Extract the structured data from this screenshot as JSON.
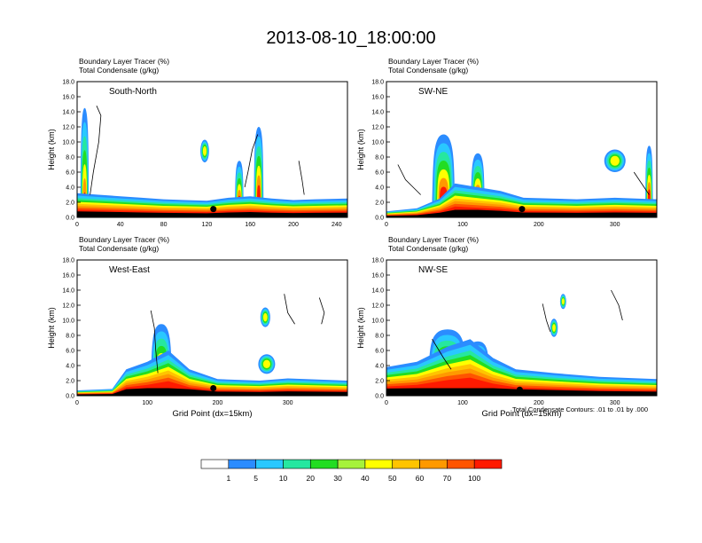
{
  "figure": {
    "title": "2013-08-10_18:00:00",
    "condensate_note": "Total Condensate Contours: .01 to .01 by .000"
  },
  "palette": {
    "label_values": [
      "1",
      "5",
      "10",
      "20",
      "30",
      "40",
      "50",
      "60",
      "70",
      "100"
    ],
    "colors": [
      "#ffffff",
      "#2b8cff",
      "#29c8ff",
      "#26e7a0",
      "#22dd22",
      "#a6f23b",
      "#ffff00",
      "#ffc400",
      "#ff9900",
      "#ff5400",
      "#ff1a00"
    ]
  },
  "chart_data": [
    {
      "type": "heatmap",
      "panel_label": "South-North",
      "title_line1": "Boundary Layer Tracer   (%)",
      "title_line2": "Total Condensate   (g/kg)",
      "xlabel": "",
      "ylabel": "Height (km)",
      "xlim": [
        0,
        250
      ],
      "ylim": [
        0,
        18
      ],
      "xticks": [
        "0",
        "40",
        "80",
        "120",
        "160",
        "200",
        "240"
      ],
      "yticks": [
        "0.0",
        "2.0",
        "4.0",
        "6.0",
        "8.0",
        "10.0",
        "12.0",
        "14.0",
        "16.0",
        "18.0"
      ],
      "grid": false,
      "series": [
        {
          "name": "Boundary Layer Tracer",
          "units": "%",
          "features": [
            {
              "kind": "boundary_layer",
              "profile": [
                [
                  0,
                  3.2
                ],
                [
                  20,
                  3.0
                ],
                [
                  40,
                  2.8
                ],
                [
                  60,
                  2.6
                ],
                [
                  80,
                  2.4
                ],
                [
                  100,
                  2.3
                ],
                [
                  120,
                  2.2
                ],
                [
                  140,
                  2.6
                ],
                [
                  160,
                  2.8
                ],
                [
                  180,
                  2.5
                ],
                [
                  200,
                  2.3
                ],
                [
                  220,
                  2.4
                ],
                [
                  250,
                  2.5
                ]
              ]
            },
            {
              "kind": "plume",
              "x": 7,
              "base": 0,
              "top": 14.5,
              "width": 8
            },
            {
              "kind": "plume",
              "x": 168,
              "base": 2,
              "top": 12.0,
              "width": 9
            },
            {
              "kind": "plume",
              "x": 150,
              "base": 1.5,
              "top": 7.5,
              "width": 8
            },
            {
              "kind": "blob",
              "x": 118,
              "y": 8.8,
              "rx": 4,
              "ry": 1.5
            }
          ]
        },
        {
          "name": "Total Condensate",
          "units": "g/kg",
          "features": [
            {
              "kind": "contour",
              "points": [
                [
                  18,
                  14.8
                ],
                [
                  22,
                  13.5
                ],
                [
                  20,
                  10
                ],
                [
                  15,
                  6
                ],
                [
                  12,
                  3
                ]
              ]
            },
            {
              "kind": "contour",
              "points": [
                [
                  167,
                  11.0
                ],
                [
                  162,
                  9
                ],
                [
                  158,
                  6
                ],
                [
                  155,
                  4
                ]
              ]
            },
            {
              "kind": "contour",
              "points": [
                [
                  205,
                  7.5
                ],
                [
                  208,
                  5
                ],
                [
                  210,
                  3
                ]
              ]
            }
          ]
        }
      ],
      "marker": {
        "x": 126,
        "y": 1.1
      }
    },
    {
      "type": "heatmap",
      "panel_label": "SW-NE",
      "title_line1": "Boundary Layer Tracer   (%)",
      "title_line2": "Total Condensate   (g/kg)",
      "xlabel": "",
      "ylabel": "Height (km)",
      "xlim": [
        0,
        355
      ],
      "ylim": [
        0,
        18
      ],
      "xticks": [
        "0",
        "100",
        "200",
        "300"
      ],
      "yticks": [
        "0.0",
        "2.0",
        "4.0",
        "6.0",
        "8.0",
        "10.0",
        "12.0",
        "14.0",
        "16.0",
        "18.0"
      ],
      "grid": false,
      "series": [
        {
          "name": "Boundary Layer Tracer",
          "units": "%",
          "features": [
            {
              "kind": "boundary_layer",
              "profile": [
                [
                  0,
                  0.8
                ],
                [
                  40,
                  1.2
                ],
                [
                  70,
                  2.5
                ],
                [
                  90,
                  4.5
                ],
                [
                  120,
                  4.0
                ],
                [
                  150,
                  3.5
                ],
                [
                  180,
                  2.6
                ],
                [
                  250,
                  2.4
                ],
                [
                  300,
                  2.6
                ],
                [
                  355,
                  2.4
                ]
              ]
            },
            {
              "kind": "plume",
              "x": 75,
              "base": 2,
              "top": 11.0,
              "width": 30
            },
            {
              "kind": "plume",
              "x": 120,
              "base": 2,
              "top": 8.5,
              "width": 18
            },
            {
              "kind": "plume",
              "x": 345,
              "base": 2,
              "top": 9.5,
              "width": 10
            },
            {
              "kind": "blob",
              "x": 300,
              "y": 7.5,
              "rx": 14,
              "ry": 1.5
            }
          ]
        },
        {
          "name": "Total Condensate",
          "units": "g/kg",
          "features": [
            {
              "kind": "contour",
              "points": [
                [
                  15,
                  7
                ],
                [
                  25,
                  5
                ],
                [
                  35,
                  4
                ],
                [
                  45,
                  3
                ]
              ]
            },
            {
              "kind": "contour",
              "points": [
                [
                  325,
                  6
                ],
                [
                  335,
                  4.5
                ],
                [
                  345,
                  3
                ]
              ]
            }
          ]
        }
      ],
      "marker": {
        "x": 178,
        "y": 1.1
      }
    },
    {
      "type": "heatmap",
      "panel_label": "West-East",
      "title_line1": "Boundary Layer Tracer   (%)",
      "title_line2": "Total Condensate   (g/kg)",
      "xlabel": "Grid Point (dx=15km)",
      "ylabel": "Height (km)",
      "xlim": [
        0,
        385
      ],
      "ylim": [
        0,
        18
      ],
      "xticks": [
        "0",
        "100",
        "200",
        "300"
      ],
      "yticks": [
        "0.0",
        "2.0",
        "4.0",
        "6.0",
        "8.0",
        "10.0",
        "12.0",
        "14.0",
        "16.0",
        "18.0"
      ],
      "grid": false,
      "series": [
        {
          "name": "Boundary Layer Tracer",
          "units": "%",
          "features": [
            {
              "kind": "boundary_layer",
              "profile": [
                [
                  0,
                  0.7
                ],
                [
                  50,
                  0.9
                ],
                [
                  70,
                  3.5
                ],
                [
                  100,
                  4.5
                ],
                [
                  130,
                  6.0
                ],
                [
                  160,
                  3.5
                ],
                [
                  200,
                  2.2
                ],
                [
                  260,
                  2.0
                ],
                [
                  300,
                  2.3
                ],
                [
                  385,
                  2.0
                ]
              ]
            },
            {
              "kind": "plume",
              "x": 120,
              "base": 2,
              "top": 9.5,
              "width": 30
            },
            {
              "kind": "blob",
              "x": 268,
              "y": 10.4,
              "rx": 7,
              "ry": 1.3
            },
            {
              "kind": "blob",
              "x": 270,
              "y": 4.2,
              "rx": 12,
              "ry": 1.3
            }
          ]
        },
        {
          "name": "Total Condensate",
          "units": "g/kg",
          "features": [
            {
              "kind": "contour",
              "points": [
                [
                  105,
                  11.3
                ],
                [
                  110,
                  9
                ],
                [
                  112,
                  6
                ],
                [
                  115,
                  3
                ]
              ]
            },
            {
              "kind": "contour",
              "points": [
                [
                  295,
                  13.5
                ],
                [
                  300,
                  11
                ],
                [
                  310,
                  9.5
                ]
              ]
            },
            {
              "kind": "contour",
              "points": [
                [
                  345,
                  13
                ],
                [
                  352,
                  11
                ],
                [
                  348,
                  9.5
                ]
              ]
            }
          ]
        }
      ],
      "marker": {
        "x": 194,
        "y": 1.0
      }
    },
    {
      "type": "heatmap",
      "panel_label": "NW-SE",
      "title_line1": "Boundary Layer Tracer   (%)",
      "title_line2": "Total Condensate   (g/kg)",
      "xlabel": "Grid Point (dx=15km)",
      "ylabel": "Height (km)",
      "xlim": [
        0,
        355
      ],
      "ylim": [
        0,
        18
      ],
      "xticks": [
        "0",
        "100",
        "200",
        "300"
      ],
      "yticks": [
        "0.0",
        "2.0",
        "4.0",
        "6.0",
        "8.0",
        "10.0",
        "12.0",
        "14.0",
        "16.0",
        "18.0"
      ],
      "grid": false,
      "series": [
        {
          "name": "Boundary Layer Tracer",
          "units": "%",
          "features": [
            {
              "kind": "boundary_layer",
              "profile": [
                [
                  0,
                  3.8
                ],
                [
                  40,
                  4.5
                ],
                [
                  80,
                  6.5
                ],
                [
                  110,
                  7.5
                ],
                [
                  140,
                  5.0
                ],
                [
                  170,
                  3.5
                ],
                [
                  220,
                  3.0
                ],
                [
                  280,
                  2.5
                ],
                [
                  355,
                  2.2
                ]
              ]
            },
            {
              "kind": "plume",
              "x": 80,
              "base": 3,
              "top": 8.8,
              "width": 50
            },
            {
              "kind": "plume",
              "x": 120,
              "base": 3,
              "top": 7.2,
              "width": 30
            },
            {
              "kind": "blob",
              "x": 220,
              "y": 9.0,
              "rx": 5,
              "ry": 1.2
            },
            {
              "kind": "blob",
              "x": 232,
              "y": 12.5,
              "rx": 4,
              "ry": 1.0
            }
          ]
        },
        {
          "name": "Total Condensate",
          "units": "g/kg",
          "features": [
            {
              "kind": "contour",
              "points": [
                [
                  205,
                  12.2
                ],
                [
                  210,
                  10
                ],
                [
                  215,
                  8.5
                ]
              ]
            },
            {
              "kind": "contour",
              "points": [
                [
                  295,
                  14
                ],
                [
                  305,
                  12
                ],
                [
                  310,
                  10
                ]
              ]
            },
            {
              "kind": "contour",
              "points": [
                [
                  60,
                  7.5
                ],
                [
                  75,
                  5
                ],
                [
                  85,
                  3.5
                ]
              ]
            }
          ]
        }
      ],
      "marker": {
        "x": 175,
        "y": 0.8
      }
    }
  ]
}
